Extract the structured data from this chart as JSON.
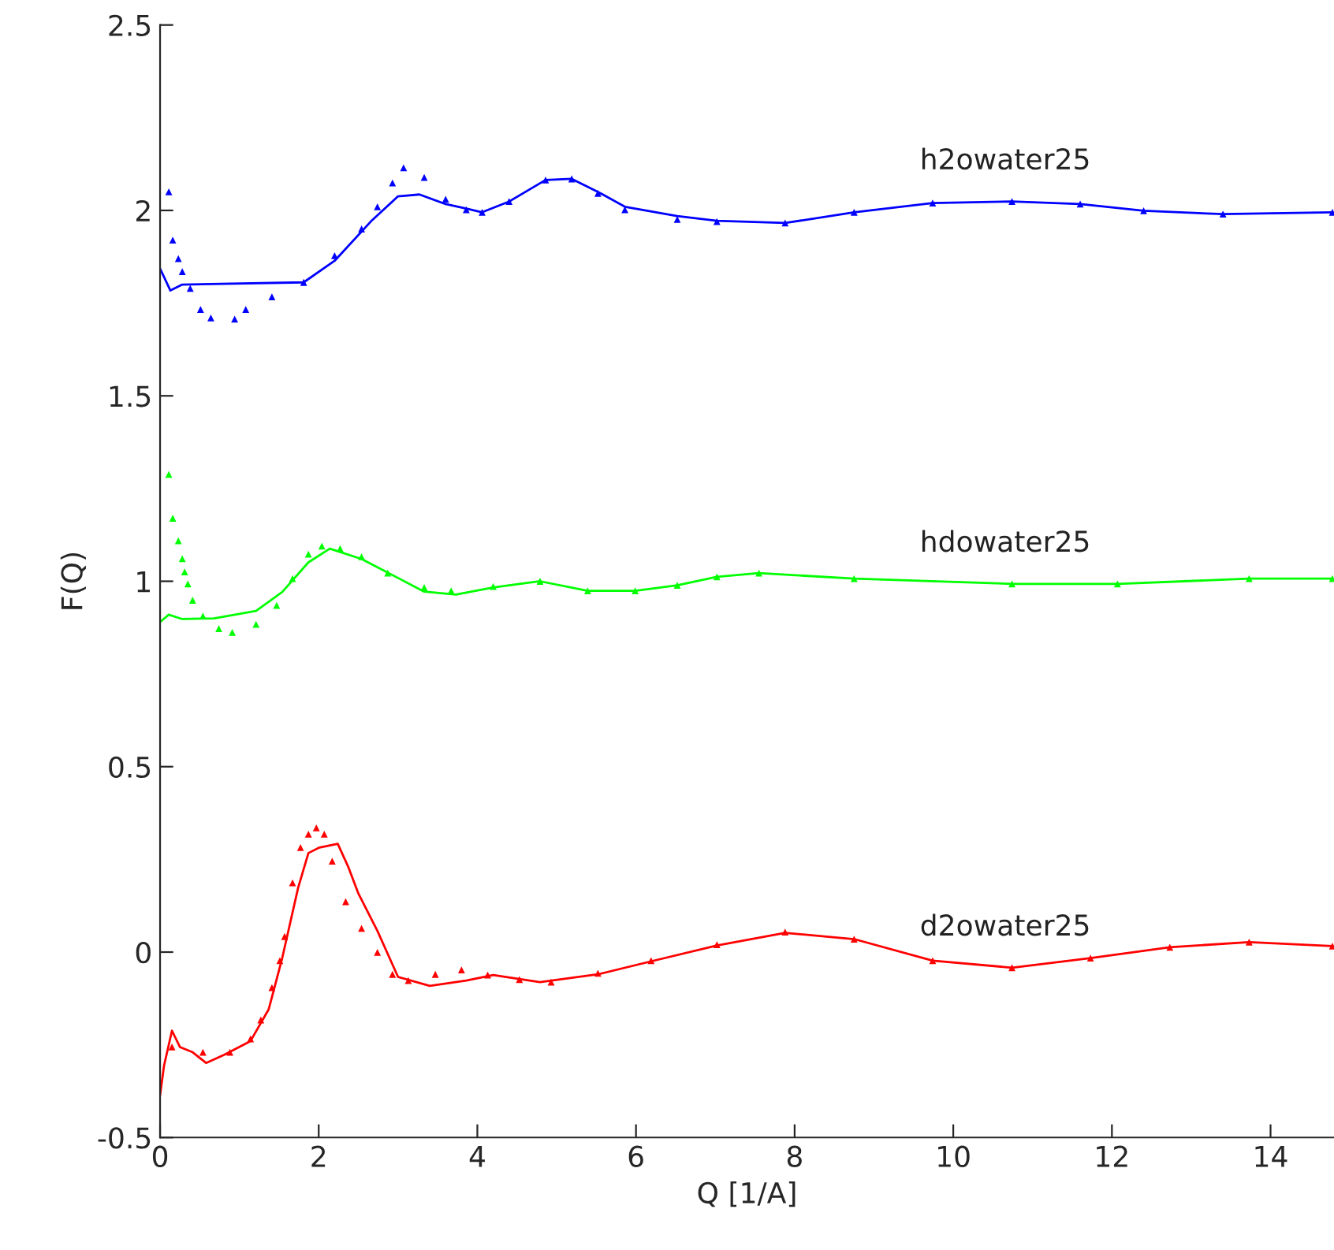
{
  "chart_data": {
    "type": "scatter",
    "xlabel": "Q [1/A]",
    "ylabel": "F(Q)",
    "xlim": [
      0,
      14.8
    ],
    "ylim": [
      -0.5,
      2.5
    ],
    "xticks": [
      0,
      2,
      4,
      6,
      8,
      10,
      12,
      14
    ],
    "yticks": [
      -0.5,
      0,
      0.5,
      1,
      1.5,
      2,
      2.5
    ],
    "grid": false,
    "legend": false,
    "series": [
      {
        "name": "h2owater25",
        "marker": "triangle",
        "color": "#0000ff",
        "x": [
          0.11,
          0.16,
          0.23,
          0.28,
          0.38,
          0.51,
          0.64,
          0.94,
          1.08,
          1.41,
          1.81,
          2.2,
          2.54,
          2.74,
          2.93,
          3.07,
          3.33,
          3.6,
          3.86,
          4.06,
          4.4,
          4.86,
          5.19,
          5.52,
          5.86,
          6.52,
          7.02,
          7.88,
          8.75,
          9.74,
          10.74,
          11.6,
          12.4,
          13.4,
          14.78
        ],
        "values": [
          2.05,
          1.92,
          1.87,
          1.835,
          1.79,
          1.733,
          1.71,
          1.707,
          1.733,
          1.767,
          1.806,
          1.878,
          1.95,
          2.01,
          2.074,
          2.115,
          2.089,
          2.03,
          2.002,
          1.995,
          2.024,
          2.082,
          2.085,
          2.046,
          2.002,
          1.976,
          1.97,
          1.966,
          1.995,
          2.02,
          2.024,
          2.017,
          1.999,
          1.99,
          1.995
        ]
      },
      {
        "type": "line",
        "marker": "none",
        "color": "#0000ff",
        "x": [
          0.0,
          0.13,
          0.28,
          1.81,
          2.2,
          2.67,
          3.0,
          3.27,
          3.6,
          3.86,
          4.06,
          4.4,
          4.86,
          5.19,
          5.52,
          5.86,
          6.52,
          7.02,
          7.88,
          8.75,
          9.74,
          10.74,
          11.6,
          12.4,
          13.4,
          14.78
        ],
        "values": [
          1.843,
          1.784,
          1.8,
          1.806,
          1.864,
          1.973,
          2.038,
          2.043,
          2.017,
          2.005,
          1.995,
          2.024,
          2.082,
          2.085,
          2.05,
          2.01,
          1.985,
          1.972,
          1.966,
          1.995,
          2.02,
          2.024,
          2.017,
          1.999,
          1.99,
          1.995
        ]
      },
      {
        "name": "hdowater25",
        "marker": "triangle",
        "color": "#00ff00",
        "x": [
          0.11,
          0.16,
          0.23,
          0.28,
          0.31,
          0.35,
          0.41,
          0.54,
          0.74,
          0.91,
          1.21,
          1.47,
          1.67,
          1.87,
          2.04,
          2.27,
          2.54,
          2.87,
          3.33,
          3.67,
          4.2,
          4.79,
          5.39,
          5.99,
          6.52,
          7.02,
          7.55,
          8.75,
          10.74,
          12.07,
          13.73,
          14.78
        ],
        "values": [
          1.288,
          1.17,
          1.109,
          1.061,
          1.025,
          0.993,
          0.949,
          0.906,
          0.872,
          0.862,
          0.884,
          0.935,
          1.007,
          1.073,
          1.095,
          1.088,
          1.066,
          1.022,
          0.983,
          0.974,
          0.986,
          1.0,
          0.974,
          0.974,
          0.989,
          1.012,
          1.022,
          1.007,
          0.993,
          0.993,
          1.007,
          1.007
        ]
      },
      {
        "type": "line",
        "marker": "none",
        "color": "#00ff00",
        "x": [
          0.0,
          0.11,
          0.28,
          0.68,
          1.21,
          1.54,
          1.87,
          2.14,
          2.54,
          3.33,
          3.73,
          4.2,
          4.79,
          5.39,
          5.99,
          6.52,
          7.02,
          7.55,
          8.75,
          10.74,
          12.07,
          13.73,
          14.78
        ],
        "values": [
          0.89,
          0.91,
          0.898,
          0.9,
          0.92,
          0.971,
          1.051,
          1.088,
          1.06,
          0.972,
          0.964,
          0.983,
          1.0,
          0.974,
          0.974,
          0.989,
          1.012,
          1.022,
          1.007,
          0.993,
          0.993,
          1.007,
          1.007
        ]
      },
      {
        "name": "d2owater25",
        "marker": "triangle",
        "color": "#ff0000",
        "x": [
          0.15,
          0.54,
          0.88,
          1.14,
          1.27,
          1.41,
          1.51,
          1.57,
          1.67,
          1.77,
          1.87,
          1.97,
          2.07,
          2.17,
          2.34,
          2.54,
          2.74,
          2.93,
          3.13,
          3.47,
          3.8,
          4.13,
          4.53,
          4.93,
          5.52,
          6.19,
          7.02,
          7.88,
          8.75,
          9.74,
          10.74,
          11.73,
          12.73,
          13.73,
          14.78
        ],
        "values": [
          -0.256,
          -0.27,
          -0.27,
          -0.234,
          -0.183,
          -0.096,
          -0.023,
          0.042,
          0.187,
          0.282,
          0.318,
          0.335,
          0.318,
          0.245,
          0.136,
          0.064,
          -0.001,
          -0.06,
          -0.077,
          -0.06,
          -0.048,
          -0.062,
          -0.074,
          -0.081,
          -0.057,
          -0.023,
          0.02,
          0.054,
          0.035,
          -0.023,
          -0.042,
          -0.016,
          0.013,
          0.027,
          0.016
        ]
      },
      {
        "type": "line",
        "marker": "none",
        "color": "#ff0000",
        "x": [
          0.0,
          0.05,
          0.15,
          0.25,
          0.41,
          0.58,
          0.81,
          1.14,
          1.37,
          1.54,
          1.74,
          1.87,
          2.01,
          2.24,
          2.37,
          2.5,
          2.74,
          3.0,
          3.4,
          3.86,
          4.2,
          4.79,
          5.52,
          6.19,
          7.02,
          7.88,
          8.75,
          9.74,
          10.74,
          11.73,
          12.73,
          13.73,
          14.78
        ],
        "values": [
          -0.386,
          -0.306,
          -0.212,
          -0.256,
          -0.27,
          -0.299,
          -0.277,
          -0.24,
          -0.154,
          -0.016,
          0.173,
          0.267,
          0.282,
          0.292,
          0.231,
          0.158,
          0.057,
          -0.067,
          -0.091,
          -0.077,
          -0.062,
          -0.081,
          -0.06,
          -0.025,
          0.018,
          0.052,
          0.035,
          -0.023,
          -0.042,
          -0.016,
          0.013,
          0.027,
          0.016
        ]
      }
    ]
  }
}
